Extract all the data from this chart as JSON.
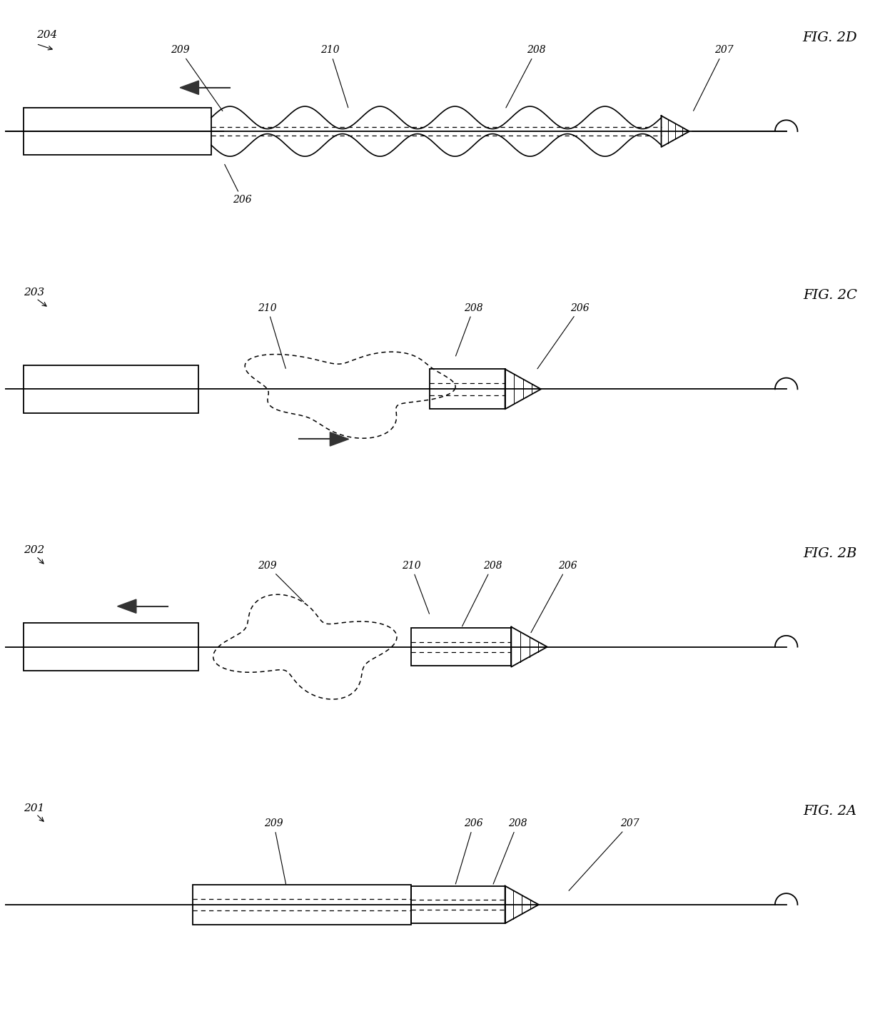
{
  "bg_color": "#ffffff",
  "fig_width": 12.4,
  "fig_height": 14.52,
  "figures": [
    "FIG. 2A",
    "FIG. 2B",
    "FIG. 2C",
    "FIG. 2D"
  ],
  "fig_labels": [
    "201",
    "202",
    "203",
    "204"
  ],
  "labels": {
    "206": "206",
    "207": "207",
    "208": "208",
    "209": "209",
    "210": "210"
  }
}
